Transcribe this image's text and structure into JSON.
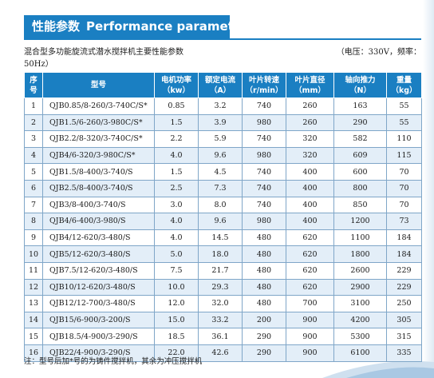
{
  "header": {
    "title_cn": "性能参数",
    "title_en": "Performance parameter"
  },
  "subtitle": {
    "text": "混合型多功能旋流式潜水搅拌机主要性能参数",
    "note": "（电压：330V，频率：",
    "note_cont": "50Hz）"
  },
  "table": {
    "columns": [
      {
        "line1": "序",
        "line2": "号"
      },
      {
        "line1": "型号",
        "line2": ""
      },
      {
        "line1": "电机功率",
        "line2": "（kw）"
      },
      {
        "line1": "额定电流",
        "line2": "（A）"
      },
      {
        "line1": "叶片转速",
        "line2": "（r/min）"
      },
      {
        "line1": "叶片直径",
        "line2": "（mm）"
      },
      {
        "line1": "轴向推力",
        "line2": "（N）"
      },
      {
        "line1": "重量",
        "line2": "（kg）"
      }
    ],
    "rows": [
      [
        "1",
        "QJB0.85/8-260/3-740C/S*",
        "0.85",
        "3.2",
        "740",
        "260",
        "163",
        "55"
      ],
      [
        "2",
        "QJB1.5/6-260/3-980C/S*",
        "1.5",
        "3.9",
        "980",
        "260",
        "290",
        "55"
      ],
      [
        "3",
        "QJB2.2/8-320/3-740C/S*",
        "2.2",
        "5.9",
        "740",
        "320",
        "582",
        "110"
      ],
      [
        "4",
        "QJB4/6-320/3-980C/S*",
        "4.0",
        "9.6",
        "980",
        "320",
        "609",
        "115"
      ],
      [
        "5",
        "QJB1.5/8-400/3-740/S",
        "1.5",
        "4.5",
        "740",
        "400",
        "600",
        "70"
      ],
      [
        "6",
        "QJB2.5/8-400/3-740/S",
        "2.5",
        "7.3",
        "740",
        "400",
        "800",
        "70"
      ],
      [
        "7",
        "QJB3/8-400/3-740/S",
        "3.0",
        "8.0",
        "740",
        "400",
        "850",
        "70"
      ],
      [
        "8",
        "QJB4/6-400/3-980/S",
        "4.0",
        "9.6",
        "980",
        "400",
        "1200",
        "73"
      ],
      [
        "9",
        "QJB4/12-620/3-480/S",
        "4.0",
        "14.5",
        "480",
        "620",
        "1100",
        "184"
      ],
      [
        "10",
        "QJB5/12-620/3-480/S",
        "5.0",
        "18.0",
        "480",
        "620",
        "1800",
        "184"
      ],
      [
        "11",
        "QJB7.5/12-620/3-480/S",
        "7.5",
        "21.7",
        "480",
        "620",
        "2600",
        "229"
      ],
      [
        "12",
        "QJB10/12-620/3-480/S",
        "10.0",
        "29.3",
        "480",
        "620",
        "2900",
        "229"
      ],
      [
        "13",
        "QJB12/12-700/3-480/S",
        "12.0",
        "32.0",
        "480",
        "700",
        "3100",
        "250"
      ],
      [
        "14",
        "QJB15/6-900/3-200/S",
        "15.0",
        "33.2",
        "200",
        "900",
        "4200",
        "305"
      ],
      [
        "15",
        "QJB18.5/4-900/3-290/S",
        "18.5",
        "36.1",
        "290",
        "900",
        "5300",
        "315"
      ],
      [
        "16",
        "QJB22/4-900/3-290/S",
        "22.0",
        "42.6",
        "290",
        "900",
        "6100",
        "335"
      ]
    ]
  },
  "footnote": "注：型号后加*号的为铸件搅拌机，其余为冲压搅拌机",
  "colors": {
    "accent": "#1a7fc2",
    "row_alt": "#e3eef8",
    "border": "#7fa6c8"
  }
}
